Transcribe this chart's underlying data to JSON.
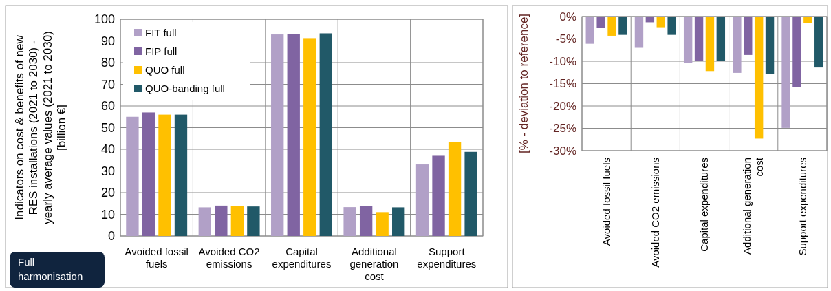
{
  "chart_data": [
    {
      "type": "bar",
      "ylabel": "Indicators on cost & benefits of new RES installations (2021 to 2030) - yearly average values (2021 to 2030) [billion €]",
      "categories": [
        "Avoided fossil fuels",
        "Avoided CO2 emissions",
        "Capital expenditures",
        "Additional generation cost",
        "Support expenditures"
      ],
      "series": [
        {
          "name": "FIT full",
          "color": "#b1a0c7",
          "values": [
            55,
            13.2,
            93,
            13.3,
            33
          ]
        },
        {
          "name": "FIP full",
          "color": "#8064a2",
          "values": [
            57,
            14,
            93.3,
            13.8,
            37
          ]
        },
        {
          "name": "QUO full",
          "color": "#ffc000",
          "values": [
            56,
            13.8,
            91.3,
            11,
            43.2
          ]
        },
        {
          "name": "QUO-banding full",
          "color": "#215968",
          "values": [
            56,
            13.6,
            93.5,
            13.2,
            38.8
          ]
        }
      ],
      "ylim": [
        0,
        100
      ],
      "yticks": [
        0,
        10,
        20,
        30,
        40,
        50,
        60,
        70,
        80,
        90,
        100
      ],
      "grid": true,
      "legend": "top left",
      "annotations": [
        "Full harmonisation"
      ]
    },
    {
      "type": "bar",
      "ylabel": "[% - deviation to reference]",
      "categories": [
        "Avoided fossil fuels",
        "Avoided CO2 emissions",
        "Capital expenditures",
        "Additional generation cost",
        "Support expenditures"
      ],
      "series": [
        {
          "color": "#b1a0c7",
          "values": [
            -6.1,
            -7,
            -10.4,
            -12.6,
            -24.9
          ]
        },
        {
          "color": "#8064a2",
          "values": [
            -2.6,
            -1.3,
            -10,
            -8.6,
            -15.8
          ]
        },
        {
          "color": "#ffc000",
          "values": [
            -4.3,
            -2.4,
            -12.2,
            -27.3,
            -1.4
          ]
        },
        {
          "color": "#215968",
          "values": [
            -4.1,
            -4.1,
            -9.9,
            -12.8,
            -11.4
          ]
        }
      ],
      "ylim": [
        -30,
        0
      ],
      "yticks": [
        {
          "value": -30,
          "label": "-30%"
        },
        {
          "value": -25,
          "label": "-25%"
        },
        {
          "value": -20,
          "label": "-20%"
        },
        {
          "value": -15,
          "label": "-15%"
        },
        {
          "value": -10,
          "label": "-10%"
        },
        {
          "value": -5,
          "label": "-5%"
        },
        {
          "value": 0,
          "label": "0%"
        }
      ],
      "grid": true
    }
  ]
}
